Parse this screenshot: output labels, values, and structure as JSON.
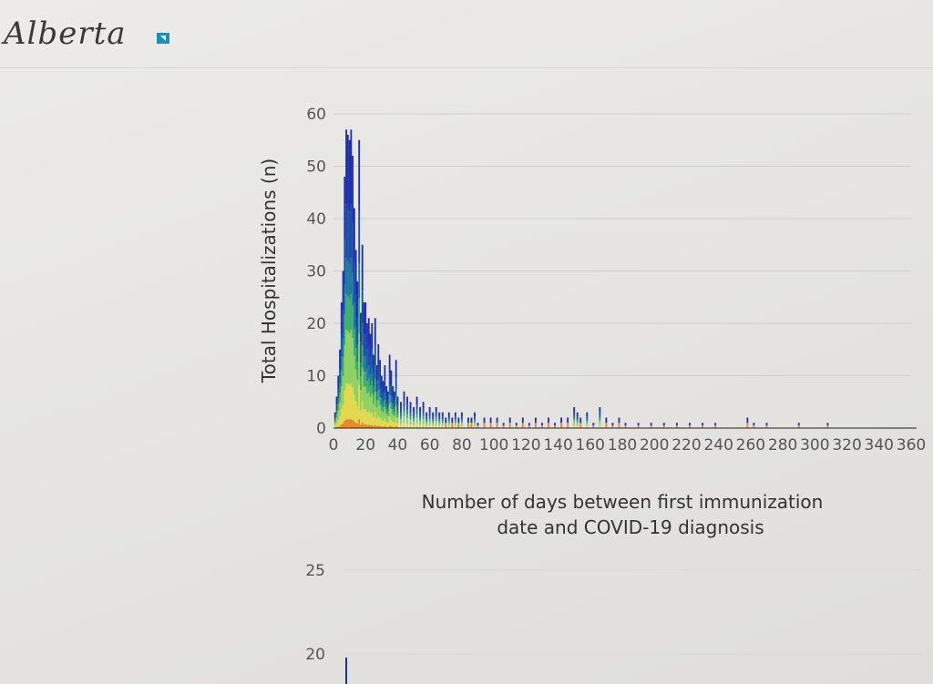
{
  "header": {
    "logo_text": "Alberta"
  },
  "chart_data": [
    {
      "type": "bar",
      "stacked": true,
      "title": "",
      "xlabel_lines": [
        "Number of days between first immunization",
        "date and COVID-19 diagnosis"
      ],
      "ylabel": "Total Hospitalizations (n)",
      "xlim": [
        0,
        360
      ],
      "ylim": [
        0,
        60
      ],
      "x_ticks": [
        "0",
        "20",
        "40",
        "60",
        "80",
        "100",
        "120",
        "140",
        "160",
        "180",
        "200",
        "220",
        "240",
        "260",
        "280",
        "300",
        "320",
        "340",
        "360"
      ],
      "y_ticks": [
        "0",
        "10",
        "20",
        "30",
        "40",
        "50",
        "60"
      ],
      "grid": "horizontal",
      "colors": [
        "#e8862a",
        "#e2d84e",
        "#8fd060",
        "#3fae6a",
        "#1d7a9a",
        "#1a4fa8",
        "#1f2fb0"
      ],
      "x": [
        1,
        2,
        3,
        4,
        5,
        6,
        7,
        8,
        9,
        10,
        11,
        12,
        13,
        14,
        15,
        16,
        17,
        18,
        19,
        20,
        21,
        22,
        23,
        24,
        25,
        26,
        27,
        28,
        29,
        30,
        31,
        32,
        33,
        34,
        35,
        36,
        37,
        38,
        39,
        40,
        42,
        44,
        46,
        48,
        50,
        52,
        54,
        56,
        58,
        60,
        62,
        64,
        66,
        68,
        70,
        72,
        74,
        76,
        78,
        80,
        84,
        86,
        88,
        90,
        94,
        98,
        102,
        106,
        110,
        114,
        118,
        122,
        126,
        130,
        134,
        138,
        142,
        146,
        150,
        152,
        154,
        158,
        162,
        166,
        170,
        174,
        178,
        182,
        190,
        198,
        206,
        214,
        222,
        230,
        238,
        258,
        262,
        270,
        290,
        308
      ],
      "totals": [
        3,
        6,
        10,
        15,
        24,
        30,
        48,
        57,
        56,
        55,
        57,
        52,
        42,
        34,
        28,
        55,
        22,
        35,
        24,
        24,
        20,
        21,
        18,
        20,
        14,
        21,
        12,
        16,
        13,
        10,
        9,
        12,
        8,
        7,
        14,
        11,
        8,
        7,
        13,
        6,
        5,
        7,
        6,
        5,
        4,
        6,
        4,
        5,
        3,
        4,
        3,
        4,
        3,
        3,
        2,
        3,
        2,
        3,
        2,
        3,
        2,
        2,
        3,
        1,
        2,
        2,
        2,
        1,
        2,
        1,
        2,
        1,
        2,
        1,
        2,
        1,
        2,
        2,
        4,
        3,
        2,
        3,
        1,
        4,
        2,
        1,
        2,
        1,
        1,
        1,
        1,
        1,
        1,
        1,
        1,
        2,
        1,
        1,
        1,
        1
      ],
      "series": [
        {
          "share": 0.03
        },
        {
          "share": 0.12
        },
        {
          "share": 0.18
        },
        {
          "share": 0.12
        },
        {
          "share": 0.12
        },
        {
          "share": 0.18
        },
        {
          "share": 0.25
        }
      ]
    },
    {
      "type": "bar",
      "title": "",
      "xlabel": "",
      "ylabel": "",
      "ylim": [
        0,
        25
      ],
      "y_ticks": [
        "25",
        "20"
      ],
      "grid": "horizontal"
    }
  ]
}
